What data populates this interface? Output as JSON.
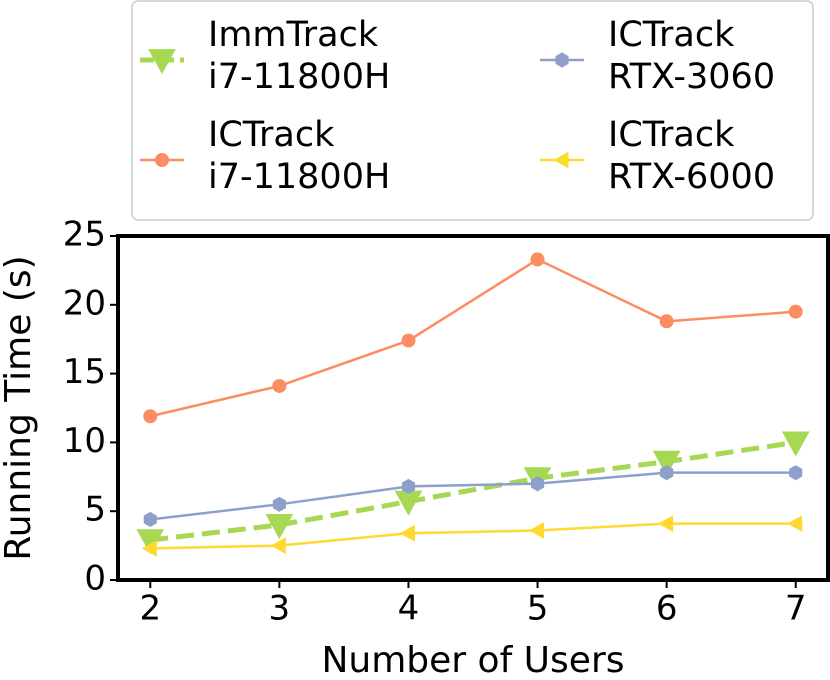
{
  "chart_data": {
    "type": "line",
    "x_label": "Number of Users",
    "y_label": "Running Time (s)",
    "x": [
      2,
      3,
      4,
      5,
      6,
      7
    ],
    "xlim": [
      1.75,
      7.25
    ],
    "xticks": [
      2,
      3,
      4,
      5,
      6,
      7
    ],
    "ylim": [
      0,
      25
    ],
    "yticks": [
      0,
      5,
      10,
      15,
      20,
      25
    ],
    "series": [
      {
        "name": "ImmTrack\ni7-11800H",
        "color": "#a6d854",
        "marker": "triangle-down",
        "linestyle": "dashed",
        "values": [
          2.9,
          4.0,
          5.7,
          7.4,
          8.6,
          10.0
        ]
      },
      {
        "name": "ICTrack\ni7-11800H",
        "color": "#fc8d62",
        "marker": "circle",
        "linestyle": "solid",
        "values": [
          11.9,
          14.1,
          17.4,
          23.3,
          18.8,
          19.5
        ]
      },
      {
        "name": "ICTrack\nRTX-3060",
        "color": "#8da0cb",
        "marker": "hexagon",
        "linestyle": "solid",
        "values": [
          4.4,
          5.5,
          6.8,
          7.0,
          7.8,
          7.8
        ]
      },
      {
        "name": "ICTrack\nRTX-6000",
        "color": "#ffd92f",
        "marker": "triangle-left",
        "linestyle": "solid",
        "values": [
          2.3,
          2.5,
          3.4,
          3.6,
          4.1,
          4.1
        ]
      }
    ]
  }
}
